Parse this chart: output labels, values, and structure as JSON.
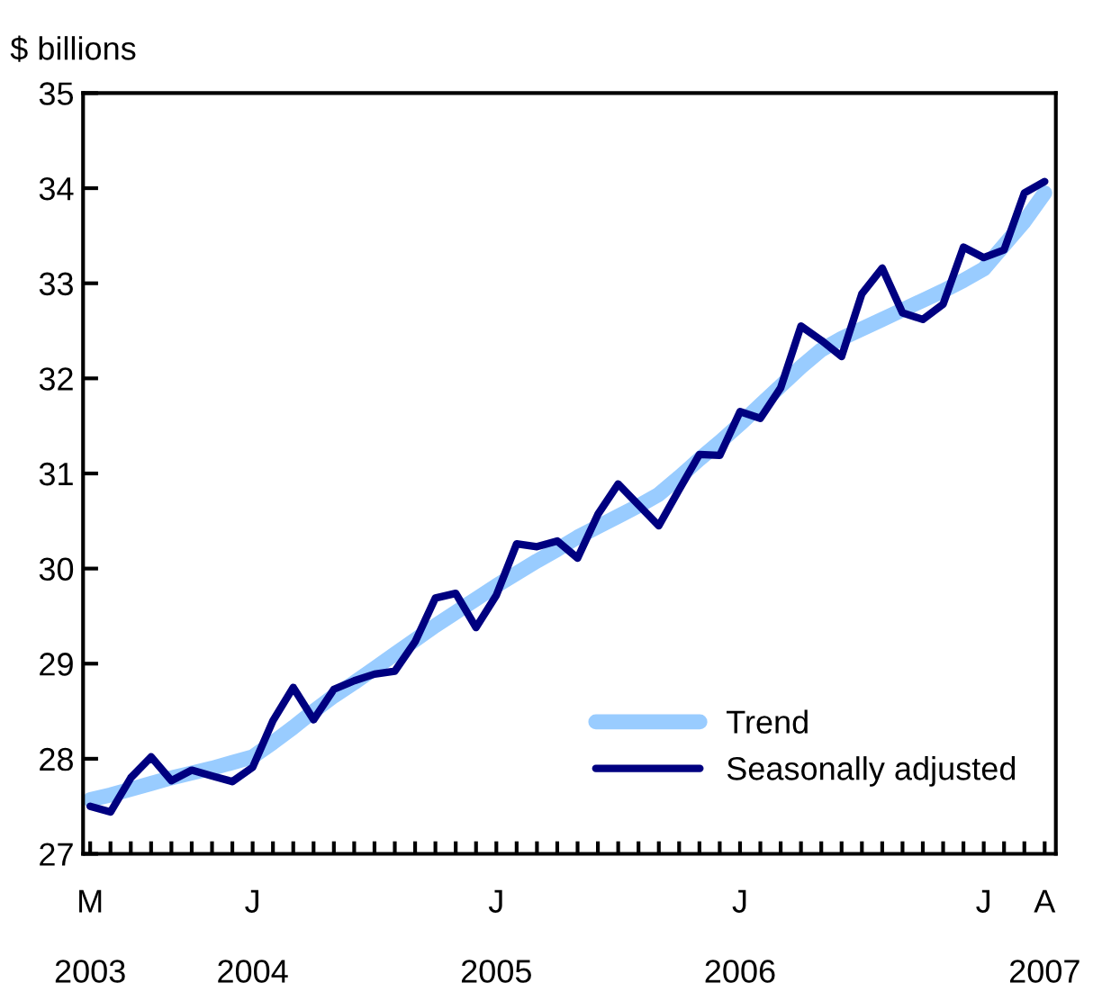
{
  "chart_data": {
    "type": "line",
    "ylabel": "$ billions",
    "categories": [
      "M\n\n2003",
      null,
      null,
      null,
      null,
      null,
      null,
      null,
      "J\n\n2004",
      null,
      null,
      null,
      null,
      null,
      null,
      null,
      null,
      null,
      null,
      null,
      "J\n\n2005",
      null,
      null,
      null,
      null,
      null,
      null,
      null,
      null,
      null,
      null,
      null,
      "J\n\n2006",
      null,
      null,
      null,
      null,
      null,
      null,
      null,
      null,
      null,
      null,
      null,
      "J",
      null,
      null,
      "A\n\n2007"
    ],
    "series": [
      {
        "name": "Trend",
        "color": "#99ccff",
        "values": [
          27.57,
          27.62,
          27.68,
          27.74,
          27.8,
          27.85,
          27.9,
          27.96,
          28.02,
          28.17,
          28.33,
          28.5,
          28.66,
          28.8,
          28.95,
          29.1,
          29.25,
          29.4,
          29.54,
          29.68,
          29.82,
          29.95,
          30.08,
          30.2,
          30.33,
          30.44,
          30.55,
          30.66,
          30.78,
          30.96,
          31.15,
          31.33,
          31.52,
          31.72,
          31.92,
          32.12,
          32.3,
          32.42,
          32.52,
          32.62,
          32.72,
          32.82,
          32.92,
          33.03,
          33.15,
          33.4,
          33.65,
          33.95
        ]
      },
      {
        "name": "Seasonally adjusted",
        "color": "#000080",
        "values": [
          27.5,
          27.44,
          27.8,
          28.02,
          27.77,
          27.88,
          27.82,
          27.76,
          27.91,
          28.4,
          28.75,
          28.41,
          28.73,
          28.82,
          28.89,
          28.92,
          29.23,
          29.69,
          29.74,
          29.38,
          29.72,
          30.26,
          30.23,
          30.29,
          30.11,
          30.57,
          30.89,
          30.67,
          30.45,
          30.83,
          31.2,
          31.19,
          31.65,
          31.58,
          31.9,
          32.55,
          32.4,
          32.23,
          32.89,
          33.16,
          32.69,
          32.62,
          32.78,
          33.38,
          33.27,
          33.35,
          33.95,
          34.07
        ]
      }
    ],
    "ylim": [
      27,
      35
    ],
    "yticks": [
      27,
      28,
      29,
      30,
      31,
      32,
      33,
      34,
      35
    ],
    "grid": false,
    "legend": "bottom right",
    "marker": "none",
    "line_style": "solid"
  }
}
